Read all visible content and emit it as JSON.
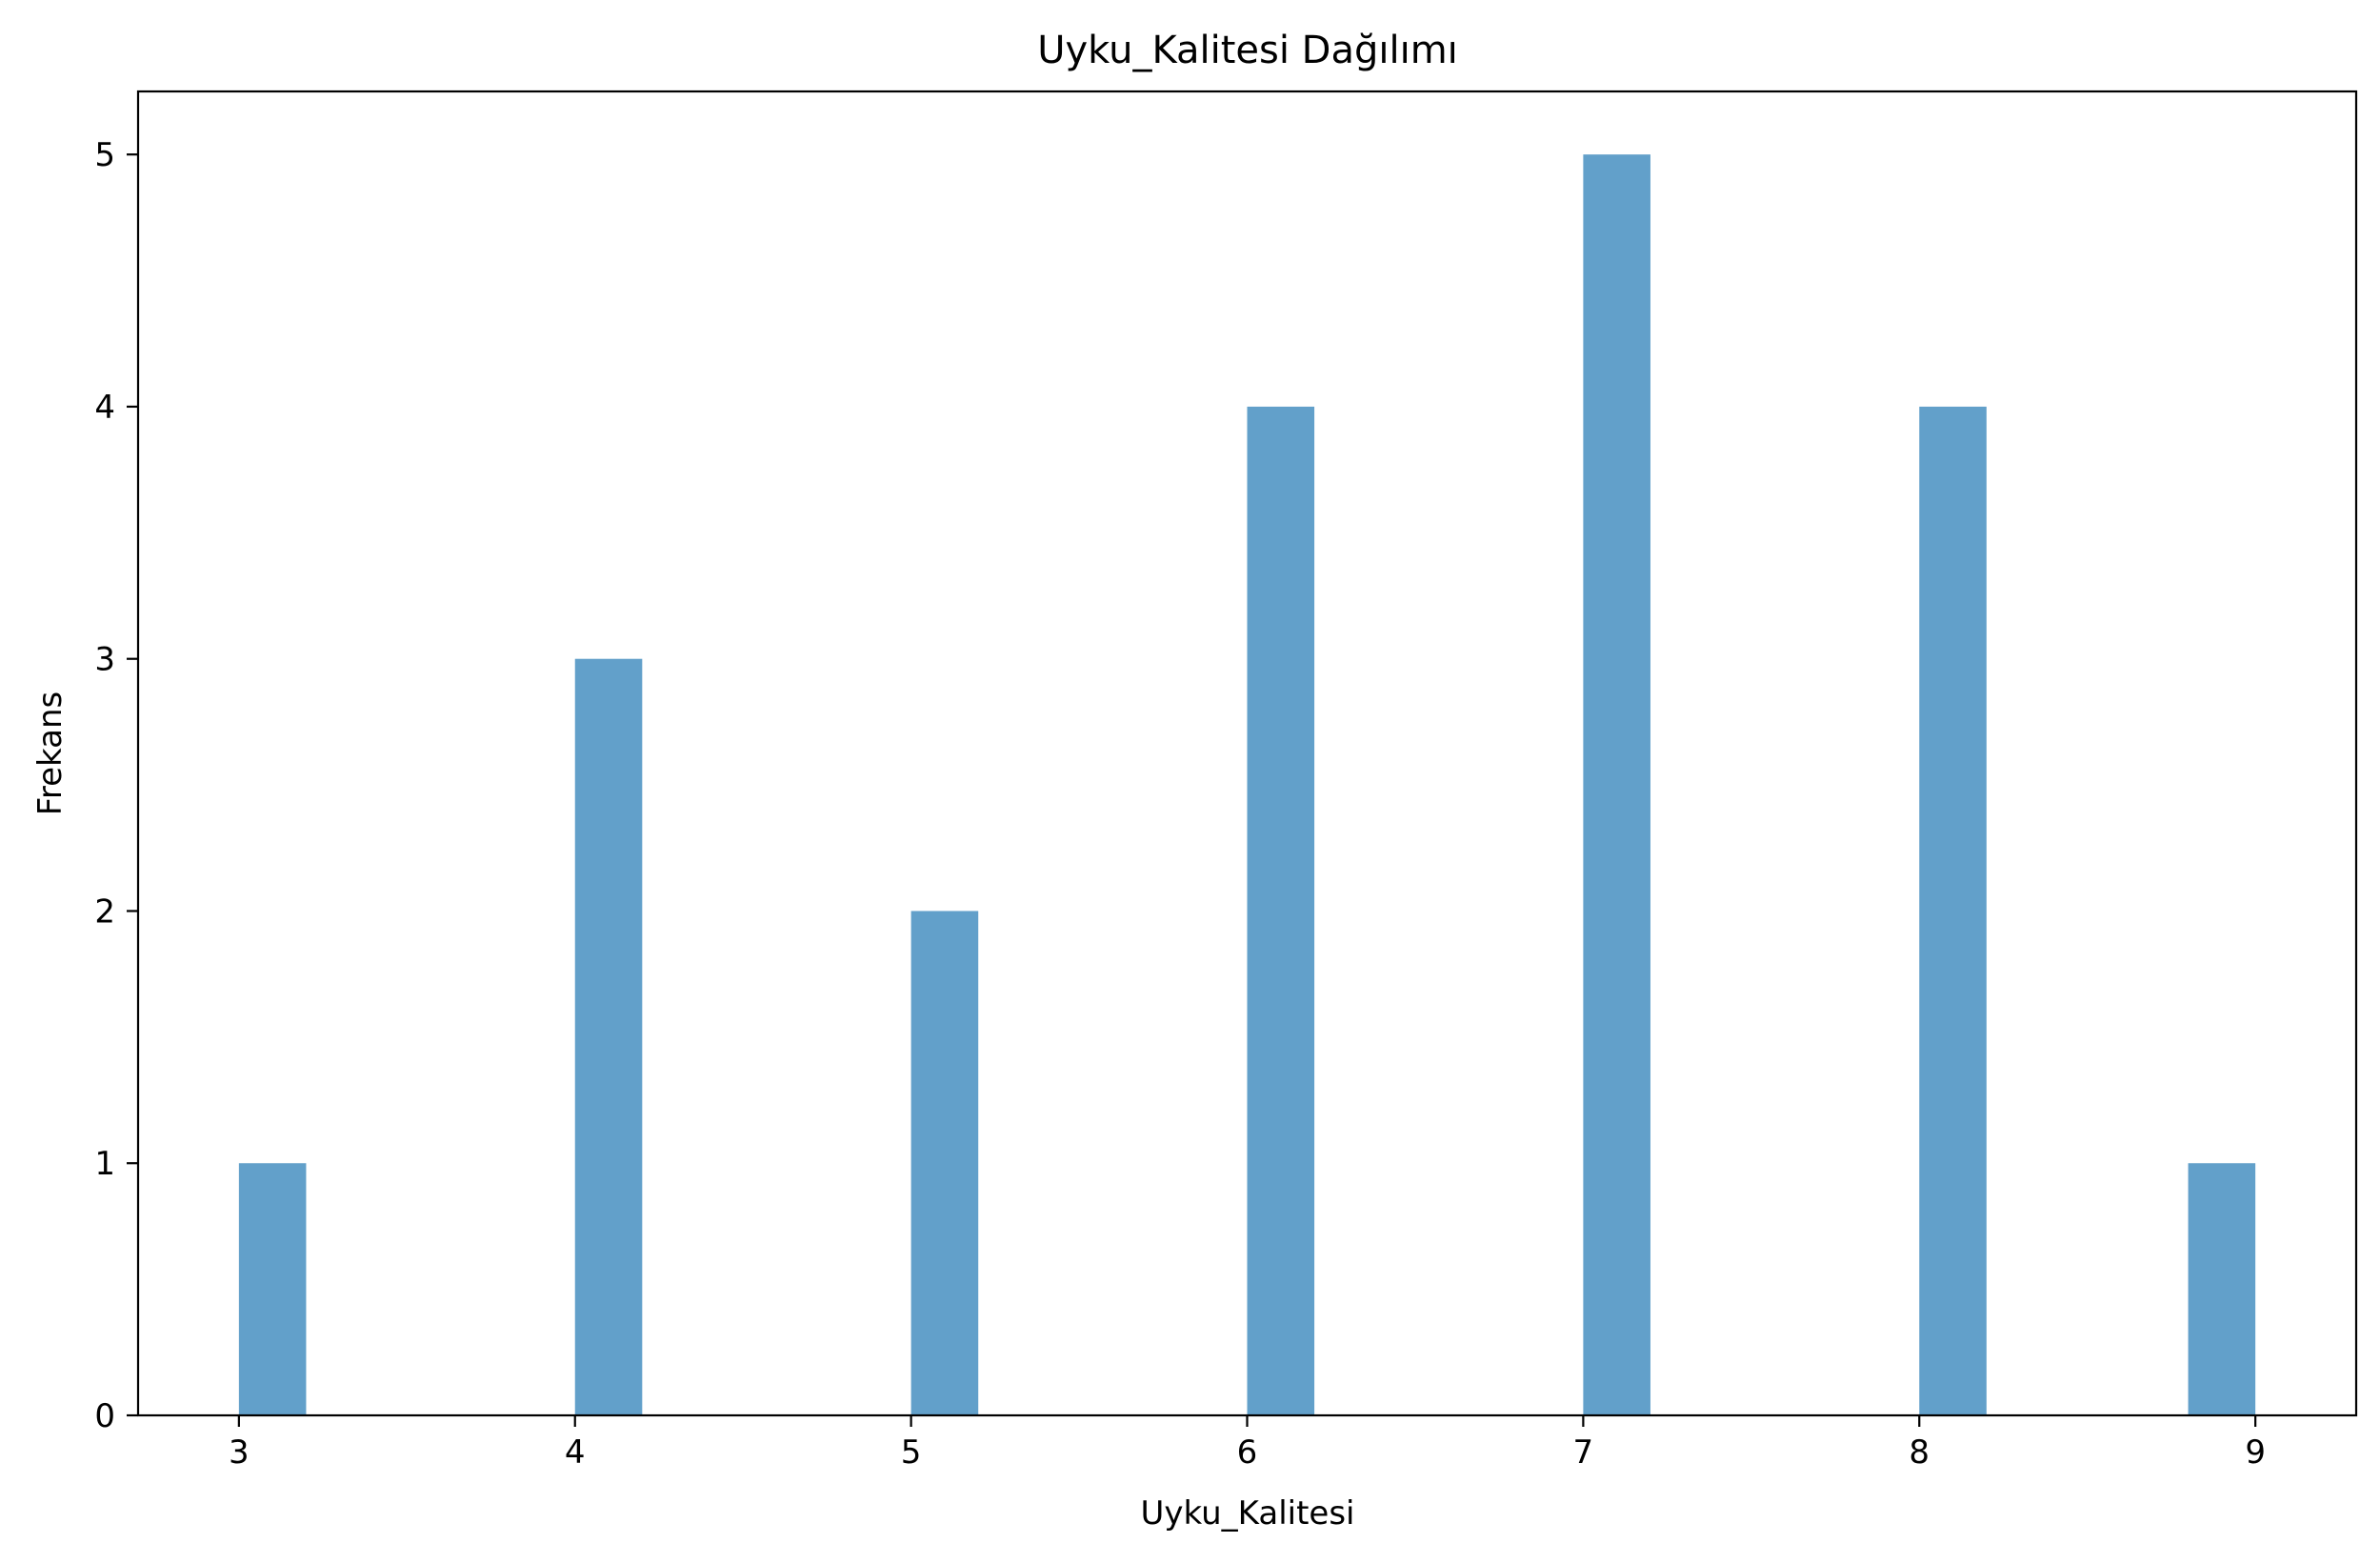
{
  "chart_data": {
    "type": "bar",
    "title": "Uyku_Kalitesi Dağılımı",
    "xlabel": "Uyku_Kalitesi",
    "ylabel": "Frekans",
    "xlim": [
      2.7,
      9.3
    ],
    "ylim": [
      0,
      5.25
    ],
    "x_ticks": [
      3,
      4,
      5,
      6,
      7,
      8,
      9
    ],
    "y_ticks": [
      0,
      1,
      2,
      3,
      4,
      5
    ],
    "bars": [
      {
        "start": 3.0,
        "end": 3.2,
        "value": 1
      },
      {
        "start": 4.0,
        "end": 4.2,
        "value": 3
      },
      {
        "start": 5.0,
        "end": 5.2,
        "value": 2
      },
      {
        "start": 6.0,
        "end": 6.2,
        "value": 4
      },
      {
        "start": 7.0,
        "end": 7.2,
        "value": 5
      },
      {
        "start": 8.0,
        "end": 8.2,
        "value": 4
      },
      {
        "start": 8.8,
        "end": 9.0,
        "value": 1
      }
    ],
    "bar_color": "#1f77b4",
    "bar_opacity": 0.7,
    "grid": false,
    "legend": "none"
  }
}
